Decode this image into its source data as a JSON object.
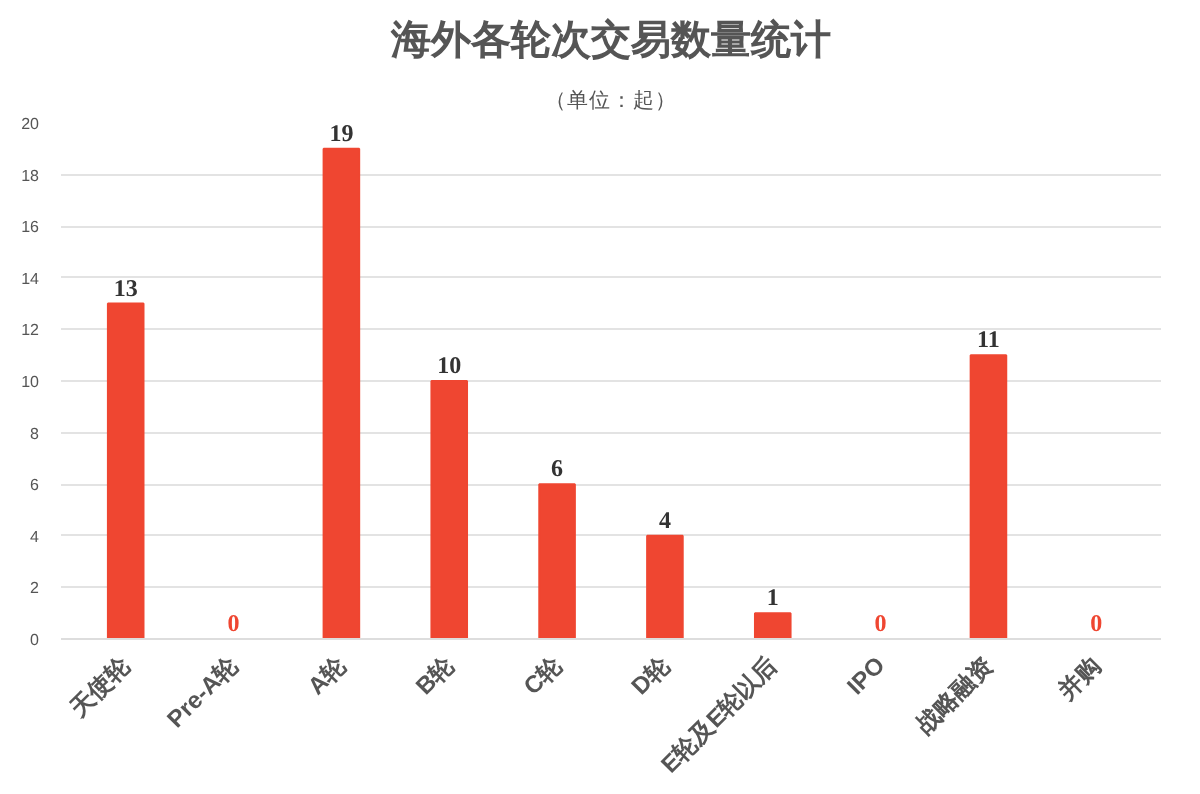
{
  "chart_data": {
    "type": "bar",
    "title": "海外各轮次交易数量统计",
    "subtitle": "（单位：起）",
    "categories": [
      "天使轮",
      "Pre-A轮",
      "A轮",
      "B轮",
      "C轮",
      "D轮",
      "E轮及E轮以后",
      "IPO",
      "战略融资",
      "并购"
    ],
    "values": [
      13,
      0,
      19,
      10,
      6,
      4,
      1,
      0,
      11,
      0
    ],
    "color": "#ef4631",
    "ylim": [
      0,
      20
    ],
    "yticks": [
      0,
      2,
      4,
      6,
      8,
      10,
      12,
      14,
      16,
      18,
      20
    ],
    "grid": "y",
    "data_labels": true
  }
}
